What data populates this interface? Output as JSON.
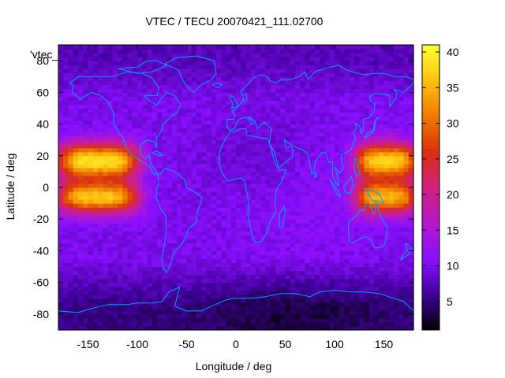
{
  "chart_data": {
    "type": "heatmap",
    "title": "VTEC / TECU 20070421_111.02700",
    "legend_key": "'vtec_",
    "xlabel": "Longitude / deg",
    "ylabel": "Latitude / deg",
    "xlim": [
      -180,
      180
    ],
    "ylim": [
      -90,
      90
    ],
    "x_ticks": [
      -150,
      -100,
      -50,
      0,
      50,
      100,
      150
    ],
    "y_ticks": [
      -80,
      -60,
      -40,
      -20,
      0,
      20,
      40,
      60,
      80
    ],
    "colorbar": {
      "range": [
        1,
        41
      ],
      "ticks": [
        5,
        10,
        15,
        20,
        25,
        30,
        35,
        40
      ],
      "palette": [
        "#000000",
        "#40009a",
        "#8a10ff",
        "#b318c8",
        "#d02080",
        "#d93010",
        "#ee7a00",
        "#ffc010",
        "#ffff30"
      ]
    },
    "grid": false,
    "coastline_color": "#00a0ff",
    "features": [
      {
        "name": "equatorial anomaly Pacific (east)",
        "lon_range": [
          -180,
          -100
        ],
        "lat_range": [
          -20,
          30
        ],
        "peak_vtec": 41
      },
      {
        "name": "equatorial anomaly Pacific (west)",
        "lon_range": [
          125,
          180
        ],
        "lat_range": [
          -20,
          30
        ],
        "peak_vtec": 40
      },
      {
        "name": "background",
        "typical_vtec": 10
      },
      {
        "name": "southern high latitudes",
        "typical_vtec": 3
      }
    ]
  }
}
